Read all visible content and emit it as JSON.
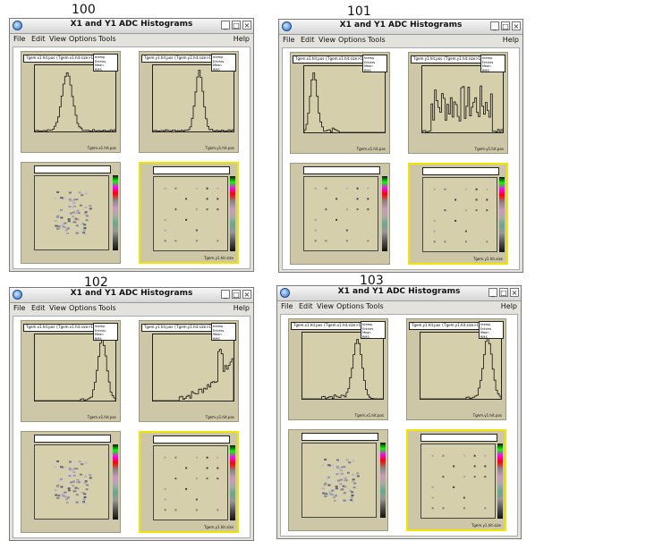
{
  "frame_labels": [
    "100",
    "101",
    "102",
    "103"
  ],
  "window": {
    "title": "X1 and Y1 ADC Histograms",
    "menu": [
      "File",
      "Edit",
      "View",
      "Options",
      "Tools"
    ],
    "help": "Help",
    "buttons": {
      "minimize": "_",
      "maximize": "□",
      "close": "×"
    }
  },
  "panels": {
    "p100": {
      "h1": "Tgem.x1.hit.pos {Tgem.x1.hit.size>1}",
      "h2": "Tgem.y1.hit.pos {Tgem.y1.hit.size>1}",
      "xlab1": "Tgem.x1.hit.pos",
      "xlab2": "Tgem.y1.hit.pos",
      "xlab4": "Tgem.y1.hit.size",
      "stat": [
        "htemp",
        "Entries",
        "Mean",
        "RMS"
      ]
    },
    "p101": {
      "h1": "Tgem.x1.hit.pos {Tgem.x1.hit.size>1}",
      "h2": "Tgem.y1.hit.pos {Tgem.y1.hit.size>1}",
      "xlab1": "Tgem.x1.hit.pos",
      "xlab2": "Tgem.y1.hit.pos",
      "xlab4": "Tgem.y1.hit.size",
      "stat": [
        "htemp",
        "Entries",
        "Mean",
        "RMS"
      ]
    },
    "p102": {
      "h1": "Tgem.x1.hit.pos {Tgem.x1.hit.size>1}",
      "h2": "Tgem.y1.hit.pos {Tgem.y1.hit.size>1}",
      "xlab1": "Tgem.x1.hit.pos",
      "xlab2": "Tgem.y1.hit.pos",
      "xlab4": "Tgem.y1.hit.size",
      "stat": [
        "htemp",
        "Entries",
        "Mean",
        "RMS"
      ]
    },
    "p103": {
      "h1": "Tgem.x1.hit.pos {Tgem.x1.hit.size>1}",
      "h2": "Tgem.y1.hit.pos {Tgem.y1.hit.size>1}",
      "xlab1": "Tgem.x1.hit.pos",
      "xlab2": "Tgem.y1.hit.pos",
      "xlab4": "Tgem.y1.hit.size",
      "stat": [
        "htemp",
        "Entries",
        "Mean",
        "RMS"
      ]
    }
  },
  "histo_shapes": {
    "p100": {
      "h1": "peak_left",
      "h2": "peak_right"
    },
    "p101": {
      "h1": "peak_far_left",
      "h2": "noisy"
    },
    "p102": {
      "h1": "peak_edge_right",
      "h2": "ramp_right"
    },
    "p103": {
      "h1": "peak_mid_right",
      "h2": "peak_edge_right"
    }
  },
  "colors": {
    "pad": "#cdc7a7",
    "frame_selected": "#f0e400",
    "line": "#111111"
  }
}
